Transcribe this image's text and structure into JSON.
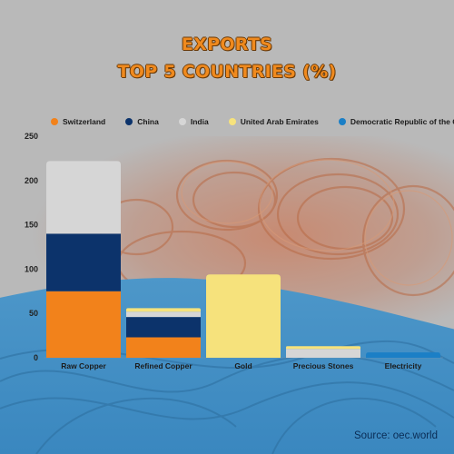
{
  "title_line1": "EXPORTS",
  "title_line2": "TOP 5 COUNTRIES (%)",
  "source": "Source: oec.world",
  "colors": {
    "Switzerland": "#f2821b",
    "China": "#0c336b",
    "India": "#d6d6d6",
    "United Arab Emirates": "#f6e27c",
    "Democratic Republic of the Congo": "#1b7fc6"
  },
  "chart_data": {
    "type": "bar",
    "stacked": true,
    "title": "EXPORTS TOP 5 COUNTRIES (%)",
    "xlabel": "",
    "ylabel": "",
    "ylim": [
      0,
      250
    ],
    "yticks": [
      0,
      50,
      100,
      150,
      200,
      250
    ],
    "grid": false,
    "legend_position": "top",
    "categories": [
      "Raw Copper",
      "Refined Copper",
      "Gold",
      "Precious Stones",
      "Electricity"
    ],
    "series": [
      {
        "name": "Switzerland",
        "values": [
          75,
          23,
          0,
          0,
          0
        ]
      },
      {
        "name": "China",
        "values": [
          65,
          23,
          0,
          0,
          0
        ]
      },
      {
        "name": "India",
        "values": [
          82,
          6,
          0,
          10,
          0
        ]
      },
      {
        "name": "United Arab Emirates",
        "values": [
          0,
          4,
          94,
          3,
          0
        ]
      },
      {
        "name": "Democratic Republic of the Congo",
        "values": [
          0,
          0,
          0,
          0,
          6
        ]
      }
    ]
  }
}
